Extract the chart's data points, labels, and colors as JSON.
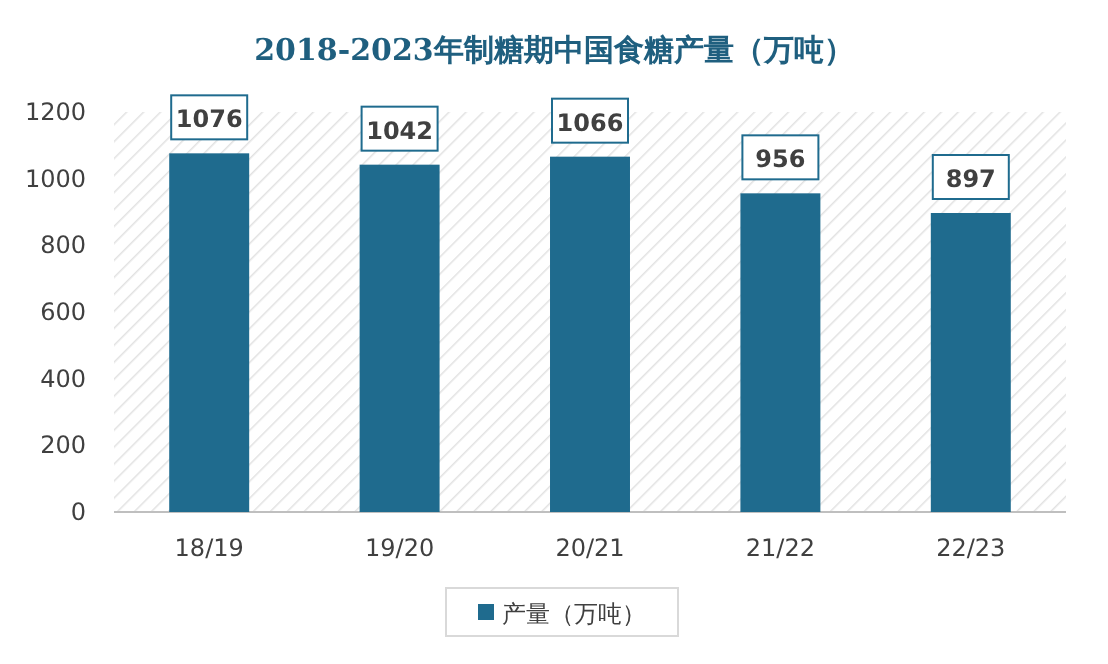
{
  "chart_data": {
    "type": "bar",
    "title": "2018-2023年制糖期中国食糖产量（万吨）",
    "categories": [
      "18/19",
      "19/20",
      "20/21",
      "21/22",
      "22/23"
    ],
    "series": [
      {
        "name": "产量（万吨）",
        "color": "#1f6b8e",
        "values": [
          1076,
          1042,
          1066,
          956,
          897
        ]
      }
    ],
    "ylim": [
      0,
      1200
    ],
    "yticks": [
      0,
      200,
      400,
      600,
      800,
      1000,
      1200
    ],
    "data_labels": true,
    "legend": "bottom"
  }
}
